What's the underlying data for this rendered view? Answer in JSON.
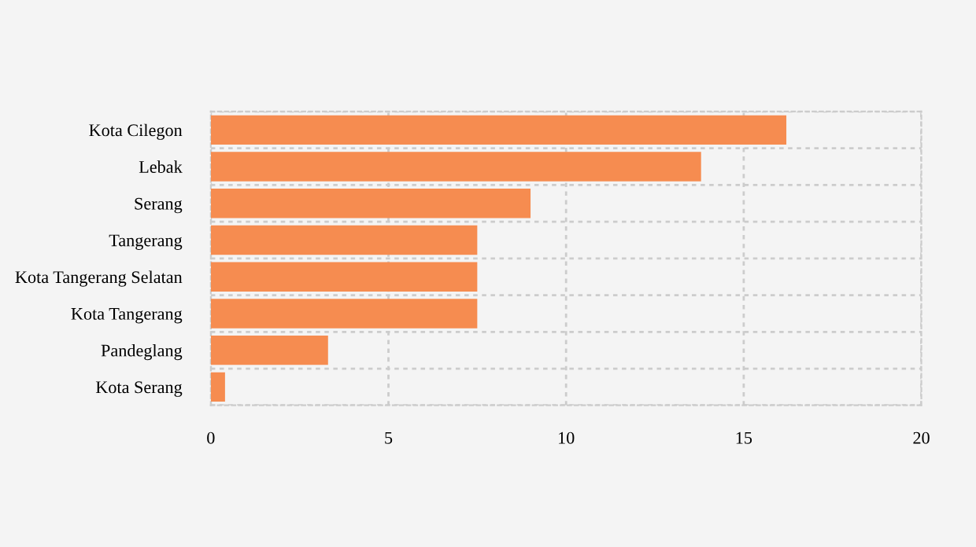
{
  "chart_data": {
    "type": "bar",
    "orientation": "horizontal",
    "categories": [
      "Kota Cilegon",
      "Lebak",
      "Serang",
      "Tangerang",
      "Kota Tangerang Selatan",
      "Kota Tangerang",
      "Pandeglang",
      "Kota Serang"
    ],
    "values": [
      16.2,
      13.8,
      9.0,
      7.5,
      7.5,
      7.5,
      3.3,
      0.4
    ],
    "color": "#f68c50",
    "xlim": [
      0,
      20
    ],
    "xticks": [
      0,
      5,
      10,
      15,
      20
    ],
    "grid": true
  }
}
